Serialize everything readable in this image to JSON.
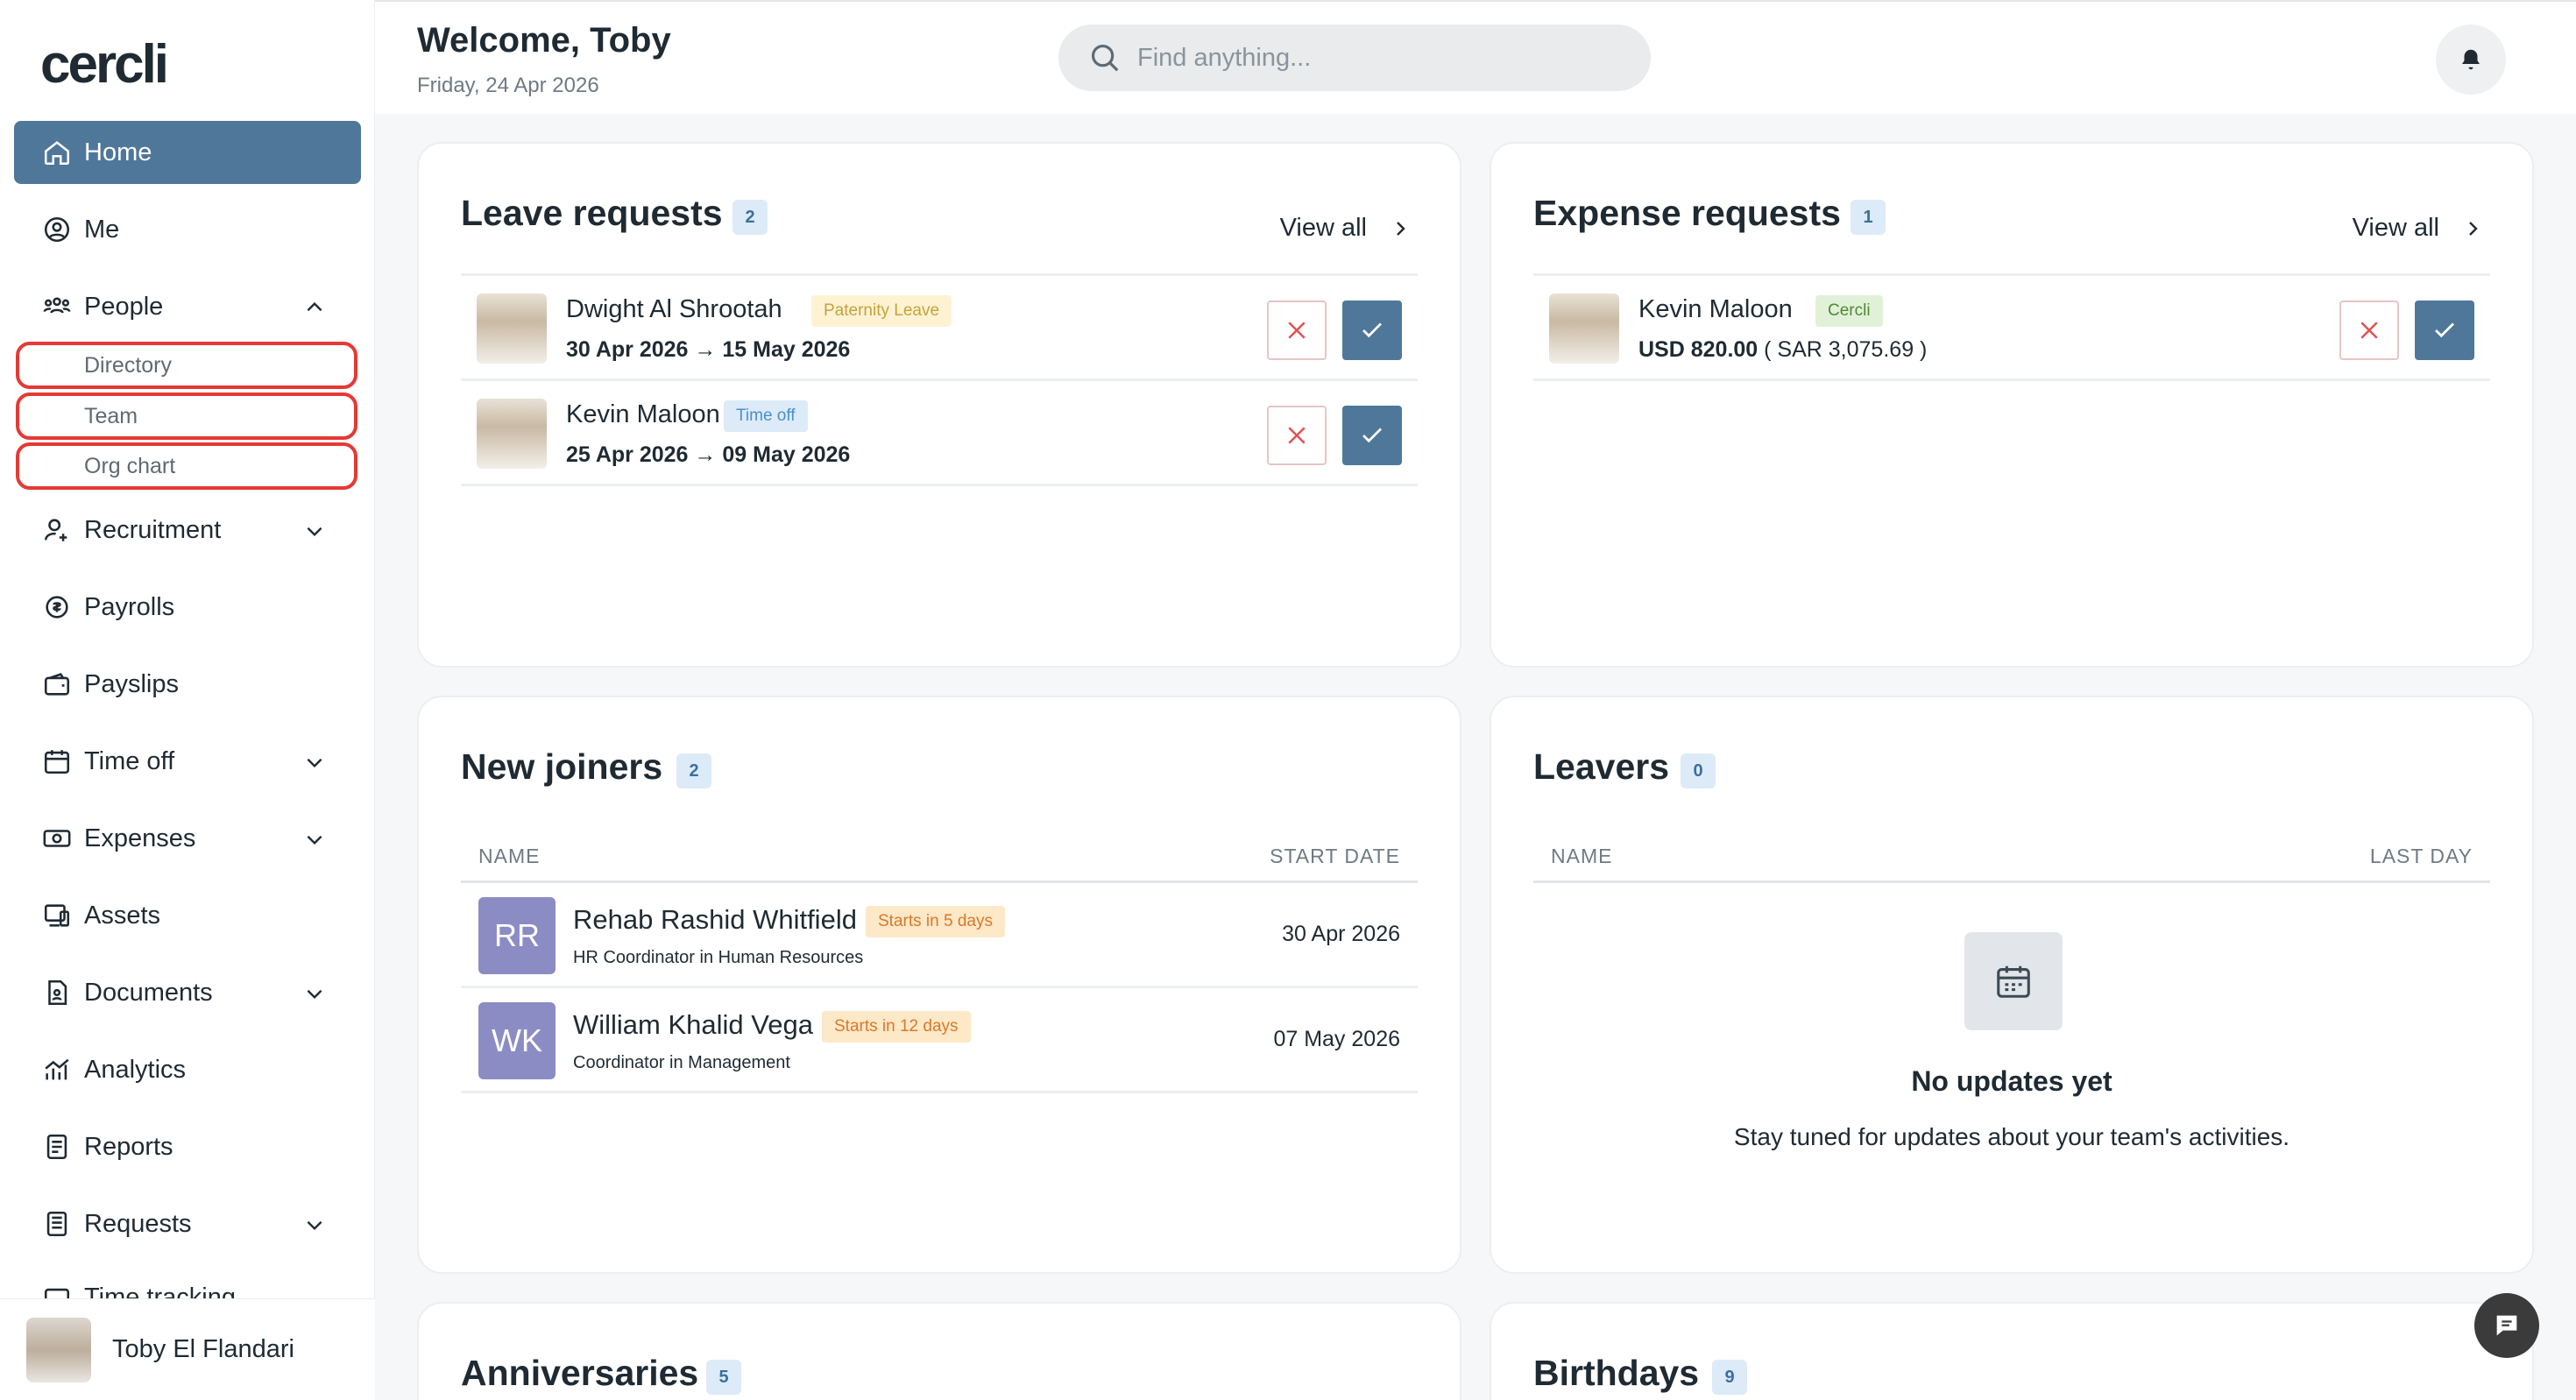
{
  "app": {
    "logo": "cercli"
  },
  "header": {
    "welcome": "Welcome, Toby",
    "date": "Friday, 24 Apr 2026",
    "search_placeholder": "Find anything..."
  },
  "sidebar": {
    "items": [
      {
        "label": "Home",
        "icon": "home-icon",
        "active": true
      },
      {
        "label": "Me",
        "icon": "user-circle-icon"
      },
      {
        "label": "People",
        "icon": "people-icon",
        "expanded": true
      },
      {
        "label": "Recruitment",
        "icon": "user-add-icon"
      },
      {
        "label": "Payrolls",
        "icon": "payroll-icon"
      },
      {
        "label": "Payslips",
        "icon": "wallet-icon"
      },
      {
        "label": "Time off",
        "icon": "calendar-icon"
      },
      {
        "label": "Expenses",
        "icon": "cash-icon"
      },
      {
        "label": "Assets",
        "icon": "device-icon"
      },
      {
        "label": "Documents",
        "icon": "document-icon"
      },
      {
        "label": "Analytics",
        "icon": "analytics-icon"
      },
      {
        "label": "Reports",
        "icon": "report-icon"
      },
      {
        "label": "Requests",
        "icon": "requests-icon"
      },
      {
        "label": "Time tracking",
        "icon": "clock-icon"
      }
    ],
    "people_sub": [
      "Directory",
      "Team",
      "Org chart"
    ],
    "user": {
      "name": "Toby El Flandari"
    },
    "highlight_color": "#e53935",
    "accent_color": "#4f779a"
  },
  "leave_requests": {
    "title": "Leave requests",
    "count": "2",
    "view_all": "View all",
    "rows": [
      {
        "name": "Dwight Al Shrootah",
        "tag": "Paternity Leave",
        "from": "30 Apr 2026",
        "to": "15 May 2026"
      },
      {
        "name": "Kevin Maloon",
        "tag": "Time off",
        "from": "25 Apr 2026",
        "to": "09 May 2026"
      }
    ]
  },
  "expense_requests": {
    "title": "Expense requests",
    "count": "1",
    "view_all": "View all",
    "rows": [
      {
        "name": "Kevin Maloon",
        "tag": "Cercli",
        "amount": "USD 820.00",
        "converted": "( SAR 3,075.69 )"
      }
    ]
  },
  "new_joiners": {
    "title": "New joiners",
    "count": "2",
    "col_name": "NAME",
    "col_date": "START DATE",
    "rows": [
      {
        "initials": "RR",
        "name": "Rehab Rashid Whitfield",
        "tag": "Starts in 5 days",
        "role": "HR Coordinator in Human Resources",
        "date": "30 Apr 2026"
      },
      {
        "initials": "WK",
        "name": "William Khalid Vega",
        "tag": "Starts in 12 days",
        "role": "Coordinator in Management",
        "date": "07 May 2026"
      }
    ]
  },
  "leavers": {
    "title": "Leavers",
    "count": "0",
    "col_name": "NAME",
    "col_date": "LAST DAY",
    "empty_title": "No updates yet",
    "empty_text": "Stay tuned for updates about your team's activities."
  },
  "anniversaries": {
    "title": "Anniversaries",
    "count": "5"
  },
  "birthdays": {
    "title": "Birthdays",
    "count": "9"
  }
}
